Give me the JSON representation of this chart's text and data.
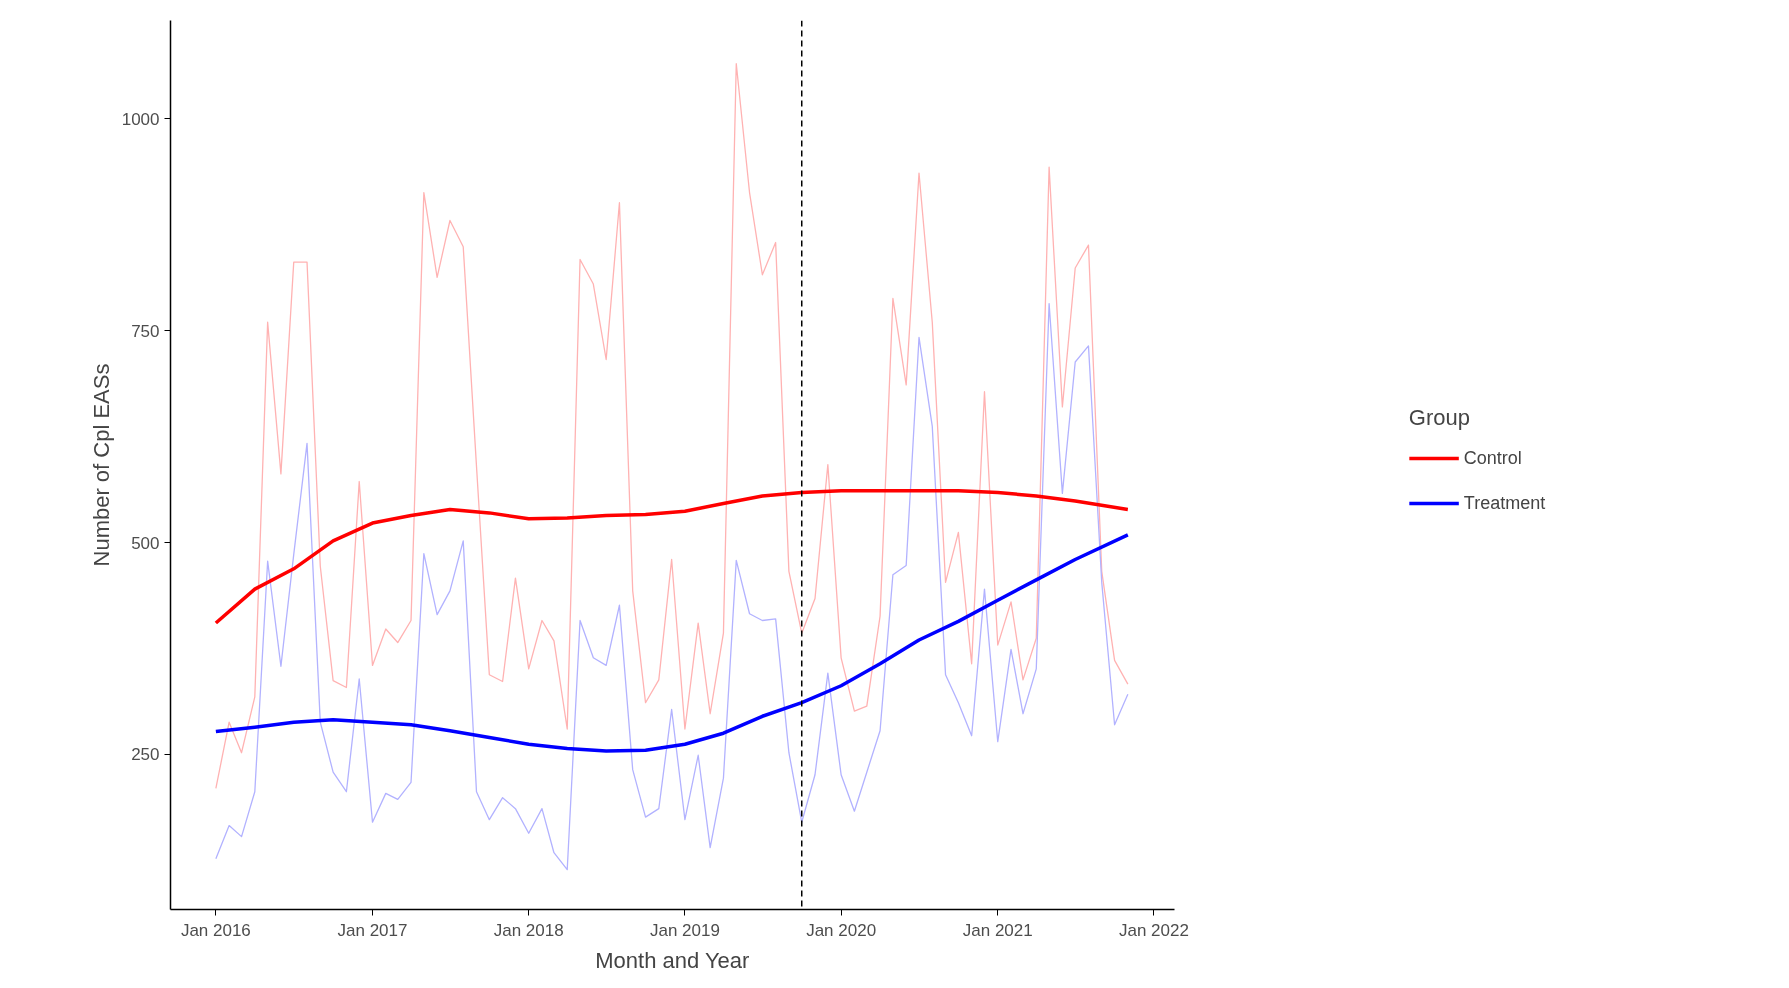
{
  "chart_data": {
    "type": "line",
    "xlabel": "Month and Year",
    "ylabel": "Number of Cpl EASs",
    "legend_title": "Group",
    "legend": "right",
    "grid": false,
    "x": [
      "2016-01",
      "2016-02",
      "2016-03",
      "2016-04",
      "2016-05",
      "2016-06",
      "2016-07",
      "2016-08",
      "2016-09",
      "2016-10",
      "2016-11",
      "2016-12",
      "2017-01",
      "2017-02",
      "2017-03",
      "2017-04",
      "2017-05",
      "2017-06",
      "2017-07",
      "2017-08",
      "2017-09",
      "2017-10",
      "2017-11",
      "2017-12",
      "2018-01",
      "2018-02",
      "2018-03",
      "2018-04",
      "2018-05",
      "2018-06",
      "2018-07",
      "2018-08",
      "2018-09",
      "2018-10",
      "2018-11",
      "2018-12",
      "2019-01",
      "2019-02",
      "2019-03",
      "2019-04",
      "2019-05",
      "2019-06",
      "2019-07",
      "2019-08",
      "2019-09",
      "2019-10",
      "2019-11",
      "2019-12",
      "2020-01",
      "2020-02",
      "2020-03",
      "2020-04",
      "2020-05",
      "2020-06",
      "2020-07",
      "2020-08",
      "2020-09",
      "2020-10",
      "2020-11",
      "2020-12",
      "2021-01",
      "2021-02",
      "2021-03",
      "2021-04",
      "2021-05",
      "2021-06",
      "2021-07",
      "2021-08",
      "2021-09",
      "2021-10",
      "2021-11"
    ],
    "xlim": [
      "2015-09-17",
      "2022-02-18"
    ],
    "ylim": [
      67,
      1116
    ],
    "xticks": [
      {
        "value": "2016-01",
        "label": "Jan 2016"
      },
      {
        "value": "2017-01",
        "label": "Jan 2017"
      },
      {
        "value": "2018-01",
        "label": "Jan 2018"
      },
      {
        "value": "2019-01",
        "label": "Jan 2019"
      },
      {
        "value": "2020-01",
        "label": "Jan 2020"
      },
      {
        "value": "2021-01",
        "label": "Jan 2021"
      },
      {
        "value": "2022-01",
        "label": "Jan 2022"
      }
    ],
    "yticks": [
      250,
      500,
      750,
      1000
    ],
    "ref_lines": [
      {
        "axis": "x",
        "value": "2019-10",
        "color": "#000000",
        "line_style": "dashed"
      }
    ],
    "series": [
      {
        "color": "#ffb2b2",
        "values": [
          210,
          288,
          252,
          318,
          760,
          581,
          831,
          831,
          472,
          337,
          329,
          572,
          355,
          398,
          382,
          408,
          913,
          813,
          880,
          849,
          590,
          344,
          336,
          458,
          351,
          408,
          384,
          280,
          834,
          805,
          716,
          901,
          443,
          311,
          338,
          480,
          280,
          405,
          298,
          393,
          1065,
          913,
          816,
          854,
          466,
          393,
          434,
          592,
          364,
          301,
          307,
          413,
          788,
          686,
          936,
          760,
          453,
          512,
          357,
          678,
          379,
          430,
          338,
          387,
          943,
          660,
          824,
          851,
          466,
          361,
          333
        ]
      },
      {
        "color": "#b2b2ff",
        "values": [
          127,
          166,
          153,
          206,
          478,
          354,
          486,
          617,
          288,
          229,
          206,
          339,
          170,
          204,
          197,
          217,
          487,
          415,
          443,
          502,
          206,
          173,
          199,
          186,
          157,
          186,
          134,
          114,
          408,
          364,
          355,
          426,
          232,
          176,
          186,
          303,
          173,
          249,
          140,
          222,
          479,
          416,
          408,
          410,
          252,
          170,
          226,
          346,
          226,
          183,
          229,
          278,
          462,
          473,
          742,
          637,
          344,
          311,
          272,
          445,
          265,
          374,
          298,
          351,
          782,
          558,
          713,
          732,
          453,
          285,
          321
        ]
      },
      {
        "name": "Control",
        "type": "line",
        "color": "#ff0000",
        "x": [
          "2016-01",
          "2016-04",
          "2016-07",
          "2016-10",
          "2017-01",
          "2017-04",
          "2017-07",
          "2017-10",
          "2018-01",
          "2018-04",
          "2018-07",
          "2018-10",
          "2019-01",
          "2019-04",
          "2019-07",
          "2019-10",
          "2020-01",
          "2020-04",
          "2020-07",
          "2020-10",
          "2021-01",
          "2021-04",
          "2021-07",
          "2021-11"
        ],
        "values": [
          405,
          445,
          469,
          502,
          523,
          532,
          539,
          535,
          528,
          529,
          532,
          533,
          537,
          546,
          555,
          559,
          561,
          561,
          561,
          561,
          559,
          555,
          549,
          539
        ]
      },
      {
        "name": "Treatment",
        "type": "line",
        "color": "#0000ff",
        "x": [
          "2016-01",
          "2016-04",
          "2016-07",
          "2016-10",
          "2017-01",
          "2017-04",
          "2017-07",
          "2017-10",
          "2018-01",
          "2018-04",
          "2018-07",
          "2018-10",
          "2019-01",
          "2019-04",
          "2019-07",
          "2019-10",
          "2020-01",
          "2020-04",
          "2020-07",
          "2020-10",
          "2021-01",
          "2021-04",
          "2021-07",
          "2021-11"
        ],
        "values": [
          277,
          282,
          288,
          291,
          288,
          285,
          278,
          270,
          262,
          257,
          254,
          255,
          262,
          275,
          295,
          311,
          331,
          357,
          385,
          407,
          432,
          456,
          480,
          509
        ]
      }
    ]
  }
}
